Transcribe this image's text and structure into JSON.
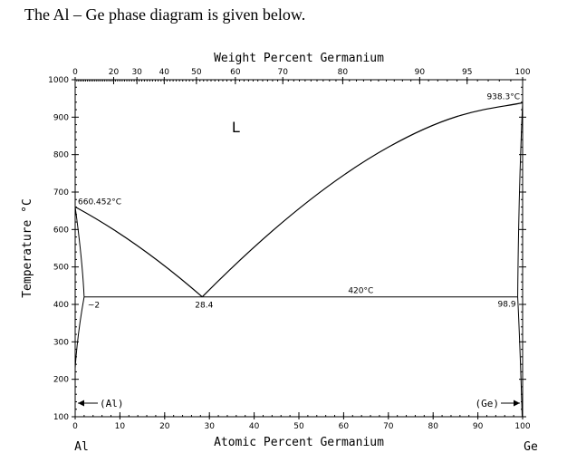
{
  "intro_text": "The Al – Ge phase diagram is given below.",
  "diagram": {
    "top_axis_title": "Weight Percent Germanium",
    "bottom_axis_title": "Atomic Percent Germanium",
    "left_axis_title": "Temperature °C",
    "left_element": "Al",
    "right_element": "Ge",
    "temperature_range": [
      100,
      1000
    ],
    "atomic_percent_range": [
      0,
      100
    ],
    "temperature_ticks": [
      "1000",
      "900",
      "800",
      "700",
      "600",
      "500",
      "400",
      "300",
      "200",
      "100"
    ],
    "atomic_ticks": [
      "0",
      "10",
      "20",
      "30",
      "40",
      "50",
      "60",
      "70",
      "80",
      "90",
      "100"
    ],
    "weight_ticks": [
      {
        "label": "0",
        "at": 0
      },
      {
        "label": "20",
        "at": 8.6
      },
      {
        "label": "30",
        "at": 13.8
      },
      {
        "label": "40",
        "at": 19.9
      },
      {
        "label": "50",
        "at": 27.1
      },
      {
        "label": "60",
        "at": 35.8
      },
      {
        "label": "70",
        "at": 46.4
      },
      {
        "label": "80",
        "at": 59.8
      },
      {
        "label": "90",
        "at": 77.0
      },
      {
        "label": "95",
        "at": 87.6
      },
      {
        "label": "100",
        "at": 100
      }
    ],
    "liquid_label": "L",
    "al_melting_label": "660.452°C",
    "ge_melting_label": "938.3°C",
    "eutectic_temp_label": "420°C",
    "eutectic_comp_label": "28.4",
    "al_solubility_label": "~2",
    "ge_solubility_label": "98.9",
    "al_phase_label": "(Al)",
    "ge_phase_label": "(Ge)",
    "points": {
      "al_melting": {
        "x": 0,
        "t": 660.452
      },
      "ge_melting": {
        "x": 100,
        "t": 938.3
      },
      "eutectic": {
        "x": 28.4,
        "t": 420
      },
      "al_max_solubility": {
        "x": 2,
        "t": 420
      },
      "ge_max_solubility": {
        "x": 98.9,
        "t": 420
      }
    }
  }
}
